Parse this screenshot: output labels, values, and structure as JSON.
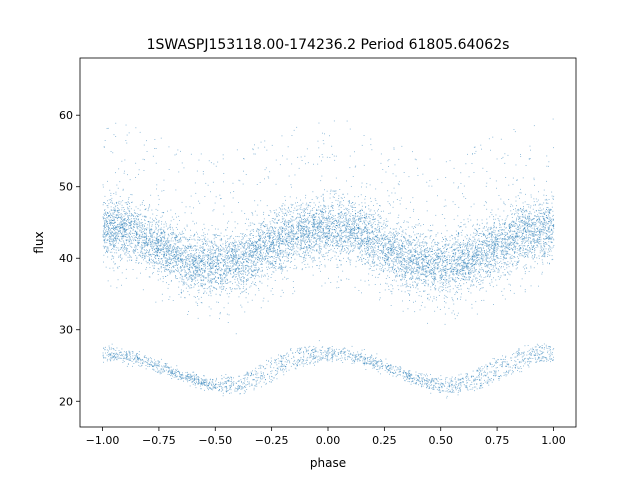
{
  "chart_data": {
    "type": "scatter",
    "title": "1SWASPJ153118.00-174236.2 Period 61805.64062s",
    "xlabel": "phase",
    "ylabel": "flux",
    "xlim": [
      -1.1,
      1.1
    ],
    "ylim": [
      16.4,
      68.0
    ],
    "xticks": [
      -1.0,
      -0.75,
      -0.5,
      -0.25,
      0.0,
      0.25,
      0.5,
      0.75,
      1.0
    ],
    "xtick_labels": [
      "−1.00",
      "−0.75",
      "−0.50",
      "−0.25",
      "0.00",
      "0.25",
      "0.50",
      "0.75",
      "1.00"
    ],
    "yticks": [
      20,
      30,
      40,
      50,
      60
    ],
    "ytick_labels": [
      "20",
      "30",
      "40",
      "50",
      "60"
    ],
    "grid": false,
    "marker_color": "#1f77b4",
    "series": [
      {
        "name": "",
        "description_points": "dense phase-folded light curve; main band sampled at phase steps",
        "x": [
          -1.0,
          -0.875,
          -0.75,
          -0.625,
          -0.5,
          -0.375,
          -0.25,
          -0.125,
          0.0,
          0.125,
          0.25,
          0.375,
          0.5,
          0.625,
          0.75,
          0.875,
          1.0
        ],
        "y": [
          44.3,
          43.8,
          41.8,
          39.6,
          39.0,
          39.8,
          41.9,
          43.5,
          44.3,
          43.8,
          41.8,
          39.6,
          39.0,
          39.8,
          41.9,
          43.5,
          44.3
        ]
      },
      {
        "name": "",
        "x": [
          -1.0,
          -0.875,
          -0.75,
          -0.625,
          -0.5,
          -0.375,
          -0.25,
          -0.125,
          0.0,
          0.125,
          0.25,
          0.375,
          0.5,
          0.625,
          0.75,
          0.875,
          1.0
        ],
        "y": [
          26.8,
          26.2,
          25.0,
          23.3,
          22.2,
          22.5,
          24.5,
          26.3,
          26.9,
          26.2,
          25.0,
          23.3,
          22.2,
          22.5,
          24.5,
          26.3,
          26.9
        ]
      }
    ]
  }
}
